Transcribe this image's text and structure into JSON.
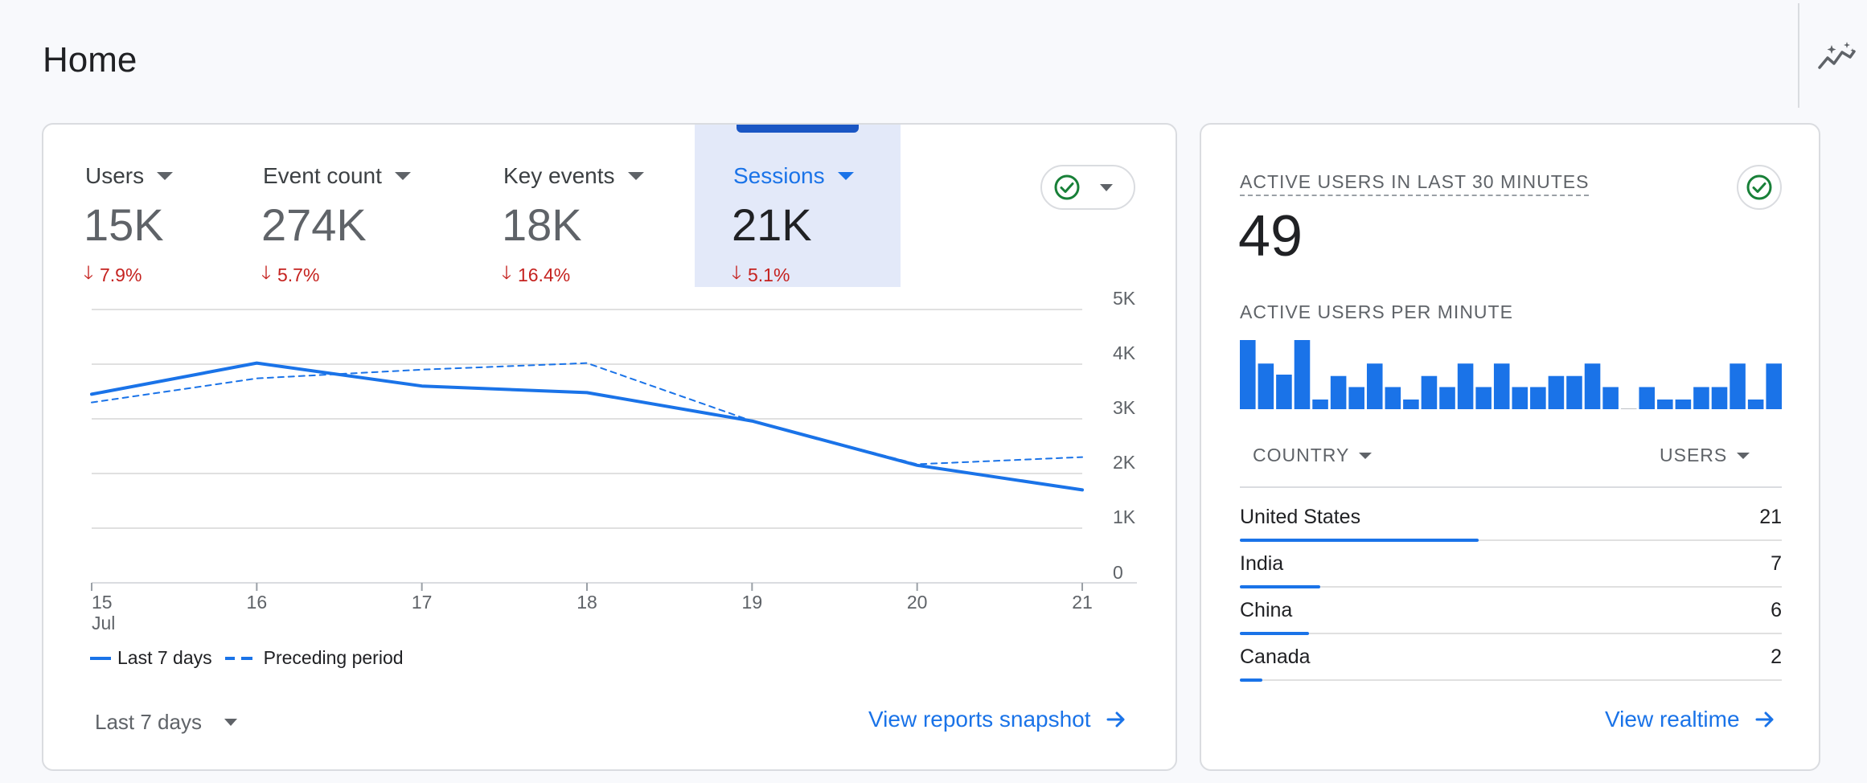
{
  "page": {
    "title": "Home"
  },
  "overview": {
    "metrics": [
      {
        "label": "Users",
        "value": "15K",
        "change": "7.9%"
      },
      {
        "label": "Event count",
        "value": "274K",
        "change": "5.7%"
      },
      {
        "label": "Key events",
        "value": "18K",
        "change": "16.4%"
      },
      {
        "label": "Sessions",
        "value": "21K",
        "change": "5.1%",
        "selected": true
      }
    ],
    "legend": {
      "current": "Last 7 days",
      "previous": "Preceding period"
    },
    "date_range": "Last 7 days",
    "link": "View reports snapshot"
  },
  "chart_data": {
    "type": "line",
    "x": [
      "15",
      "16",
      "17",
      "18",
      "19",
      "20",
      "21"
    ],
    "x_sublabels": [
      "Jul",
      "",
      "",
      "",
      "",
      "",
      ""
    ],
    "yticks": [
      "0",
      "1K",
      "2K",
      "3K",
      "4K",
      "5K"
    ],
    "ylim": [
      0,
      5000
    ],
    "grid": true,
    "legend_position": "bottom-left",
    "series": [
      {
        "name": "Last 7 days",
        "style": "solid",
        "values": [
          3450,
          4020,
          3600,
          3480,
          2960,
          2150,
          1700
        ]
      },
      {
        "name": "Preceding period",
        "style": "dashed",
        "values": [
          3300,
          3740,
          3900,
          4020,
          2960,
          2170,
          2300
        ]
      }
    ]
  },
  "realtime": {
    "title": "ACTIVE USERS IN LAST 30 MINUTES",
    "value": "49",
    "subtitle": "ACTIVE USERS PER MINUTE",
    "per_minute": [
      5,
      3.3,
      2.5,
      5,
      0.7,
      2.4,
      1.6,
      3.3,
      1.6,
      0.7,
      2.4,
      1.6,
      3.3,
      1.6,
      3.3,
      1.6,
      1.6,
      2.4,
      2.4,
      3.3,
      1.6,
      0,
      1.6,
      0.7,
      0.7,
      1.6,
      1.6,
      3.3,
      0.7,
      3.3
    ],
    "table": {
      "col_country": "COUNTRY",
      "col_users": "USERS",
      "rows": [
        {
          "country": "United States",
          "users": "21",
          "share": 0.44
        },
        {
          "country": "India",
          "users": "7",
          "share": 0.148
        },
        {
          "country": "China",
          "users": "6",
          "share": 0.127
        },
        {
          "country": "Canada",
          "users": "2",
          "share": 0.042
        }
      ]
    },
    "link": "View realtime"
  },
  "colors": {
    "accent": "#1a73e8",
    "negative": "#c5221f",
    "check": "#188038",
    "selected_bg": "#e3e9f9"
  },
  "icons": {
    "insights": "sparkle-trend-icon",
    "check": "check-circle-icon",
    "down_arrow": "arrow-down-icon",
    "forward": "arrow-right-icon"
  }
}
